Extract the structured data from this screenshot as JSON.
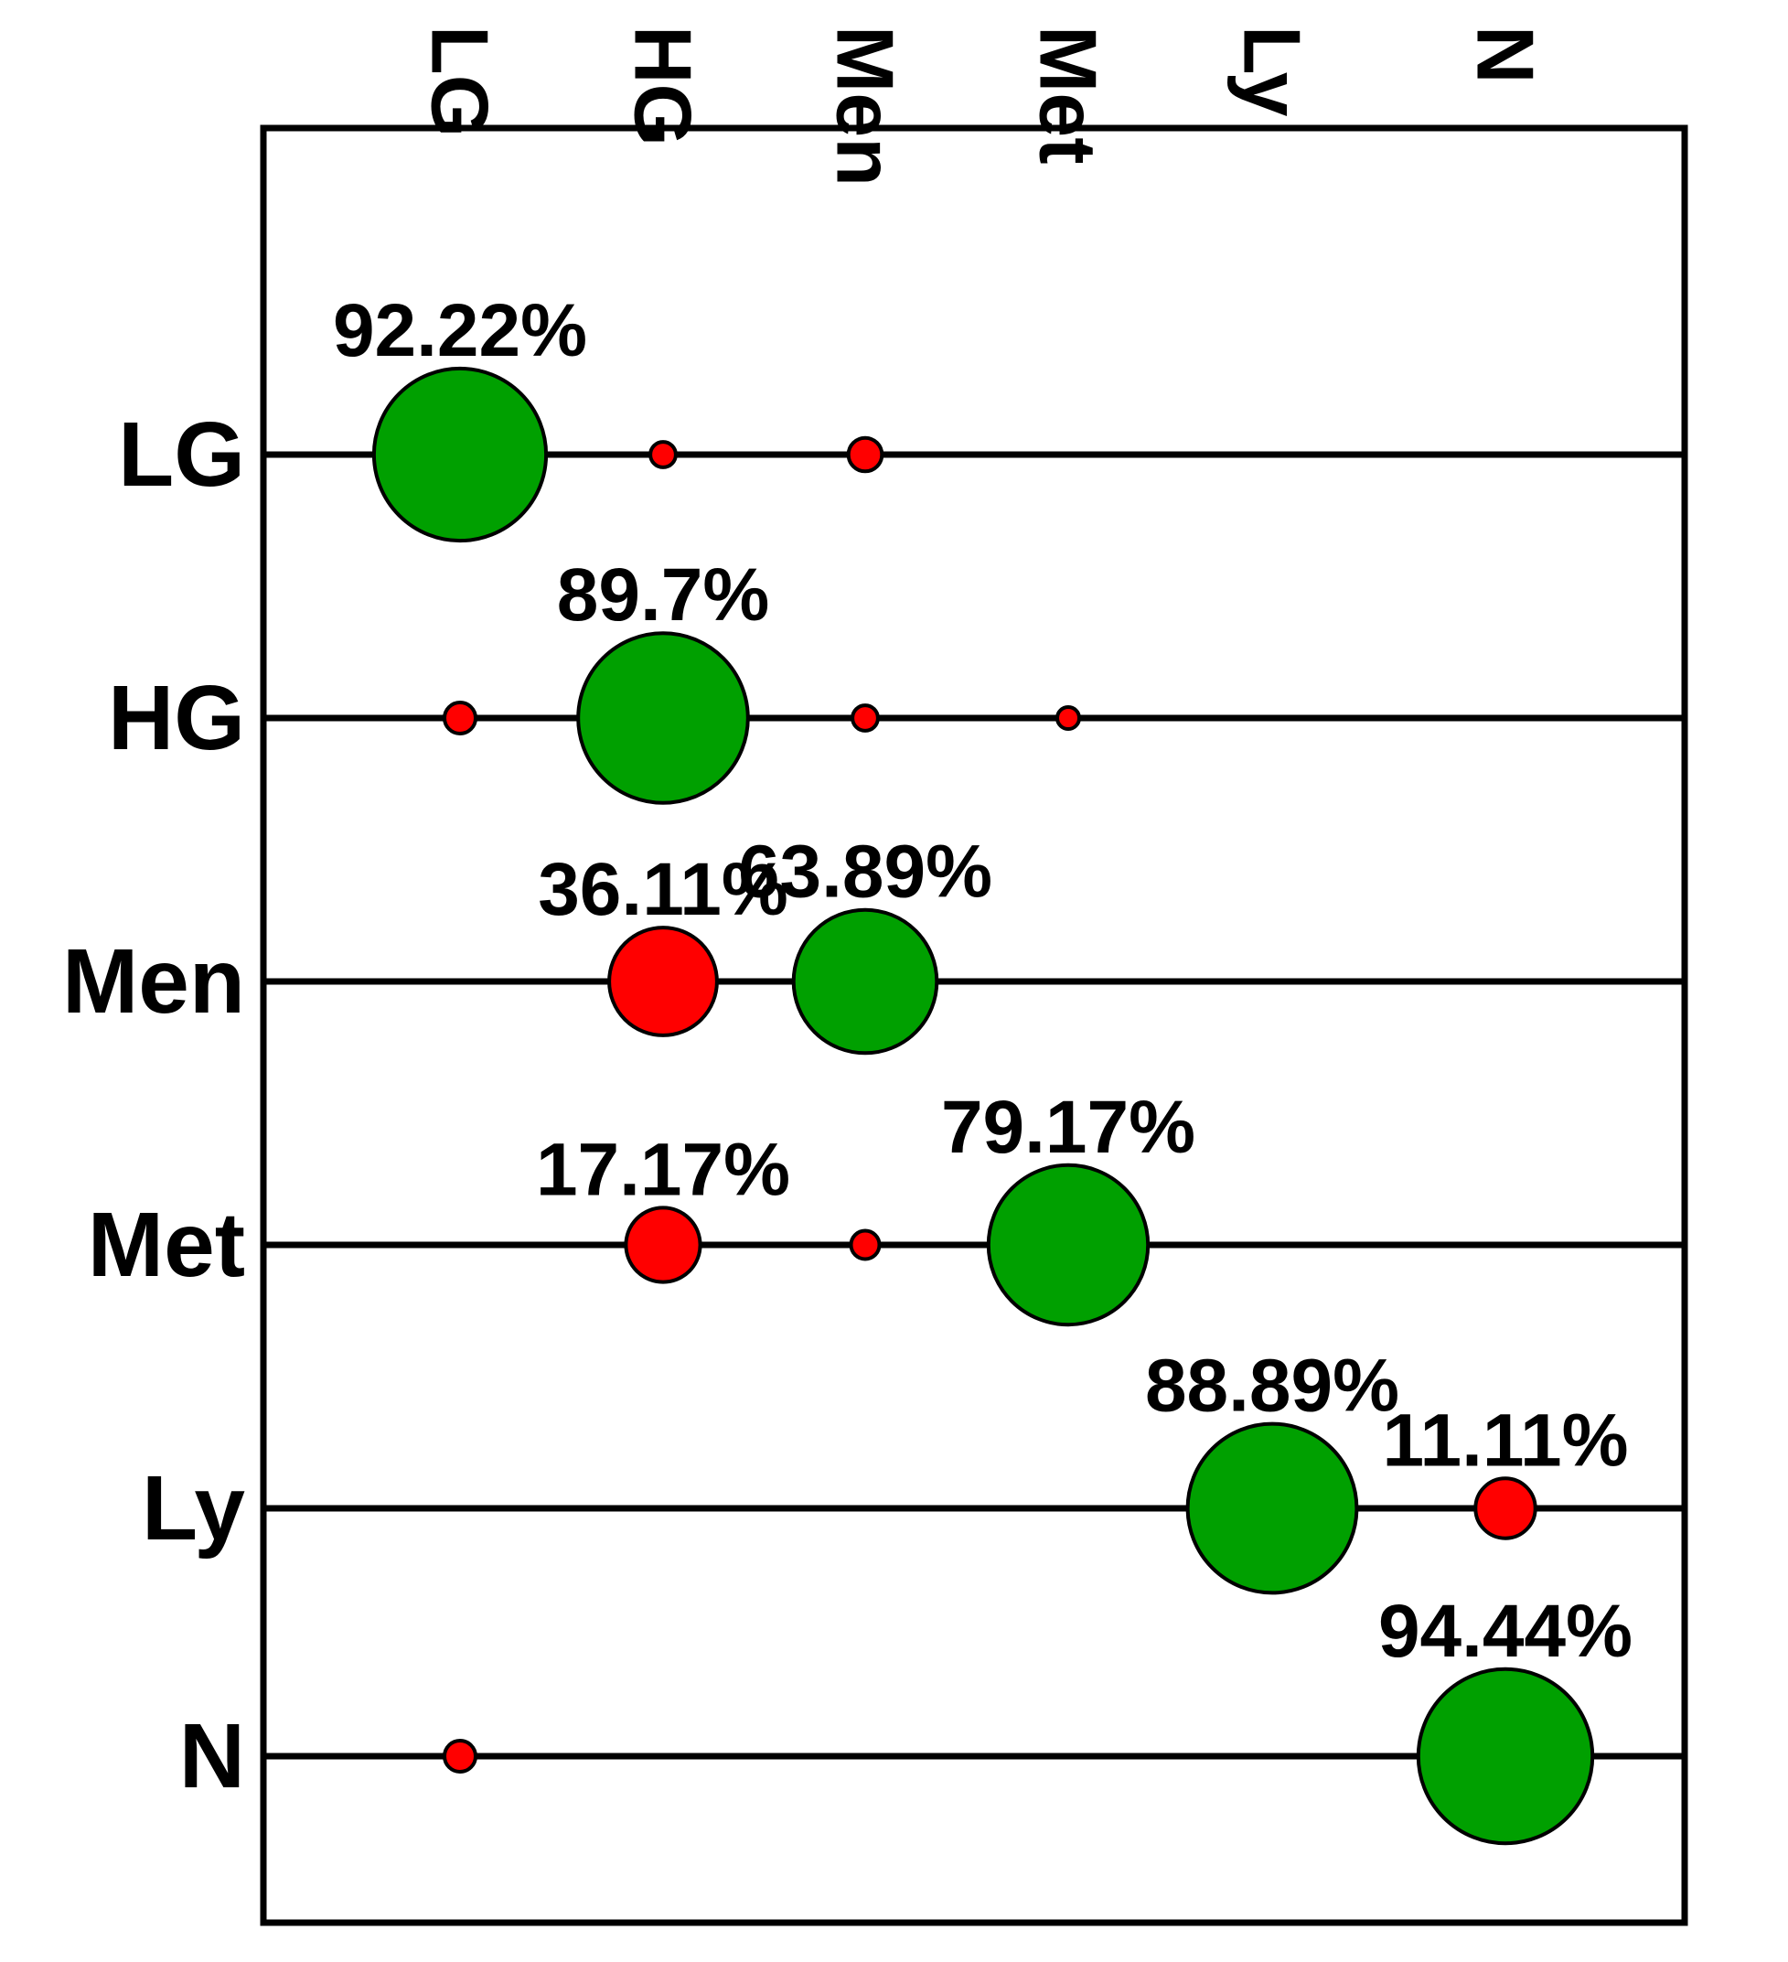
{
  "chart_data": {
    "type": "bubble-matrix",
    "title": "",
    "rows": [
      "LG",
      "HG",
      "Men",
      "Met",
      "Ly",
      "N"
    ],
    "columns": [
      "LG",
      "HG",
      "Men",
      "Met",
      "Ly",
      "N"
    ],
    "cells": [
      {
        "row": "LG",
        "col": "LG",
        "value": 92.22,
        "label": "92.22%",
        "color": "green"
      },
      {
        "row": "LG",
        "col": "HG",
        "value": 2.0,
        "label": "",
        "color": "red"
      },
      {
        "row": "LG",
        "col": "Men",
        "value": 3.5,
        "label": "",
        "color": "red"
      },
      {
        "row": "HG",
        "col": "LG",
        "value": 3.0,
        "label": "",
        "color": "red"
      },
      {
        "row": "HG",
        "col": "HG",
        "value": 89.7,
        "label": "89.7%",
        "color": "green"
      },
      {
        "row": "HG",
        "col": "Men",
        "value": 2.0,
        "label": "",
        "color": "red"
      },
      {
        "row": "HG",
        "col": "Met",
        "value": 1.5,
        "label": "",
        "color": "red"
      },
      {
        "row": "Men",
        "col": "HG",
        "value": 36.11,
        "label": "36.11%",
        "color": "red"
      },
      {
        "row": "Men",
        "col": "Men",
        "value": 63.89,
        "label": "63.89%",
        "color": "green"
      },
      {
        "row": "Met",
        "col": "HG",
        "value": 17.17,
        "label": "17.17%",
        "color": "red"
      },
      {
        "row": "Met",
        "col": "Men",
        "value": 2.5,
        "label": "",
        "color": "red"
      },
      {
        "row": "Met",
        "col": "Met",
        "value": 79.17,
        "label": "79.17%",
        "color": "green"
      },
      {
        "row": "Ly",
        "col": "Ly",
        "value": 88.89,
        "label": "88.89%",
        "color": "green"
      },
      {
        "row": "Ly",
        "col": "N",
        "value": 11.11,
        "label": "11.11%",
        "color": "red"
      },
      {
        "row": "N",
        "col": "LG",
        "value": 3.0,
        "label": "",
        "color": "red"
      },
      {
        "row": "N",
        "col": "N",
        "value": 94.44,
        "label": "94.44%",
        "color": "green"
      }
    ],
    "colors": {
      "green": "#00a000",
      "red": "#ff0000",
      "line": "#000000"
    },
    "grid": false,
    "legend": "none"
  }
}
